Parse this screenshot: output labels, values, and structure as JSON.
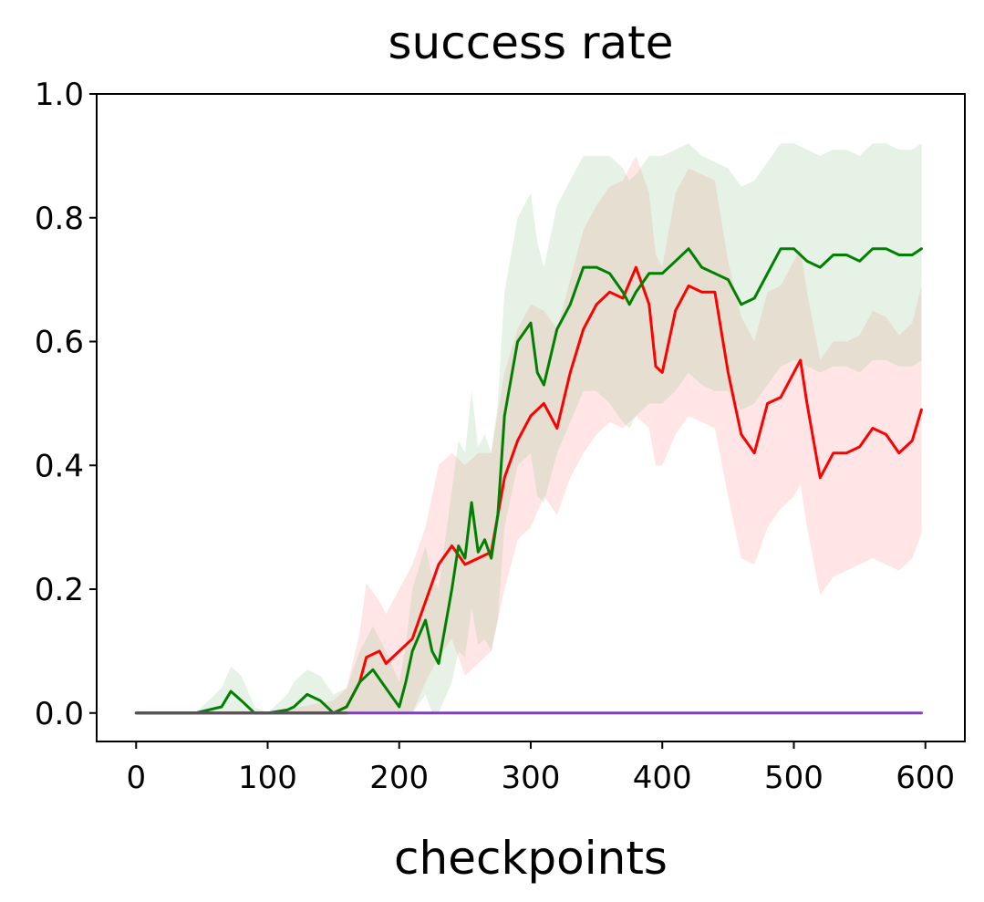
{
  "chart_data": {
    "type": "line",
    "title": "success rate",
    "xlabel": "checkpoints",
    "ylabel": "",
    "xlim": [
      -30,
      630
    ],
    "ylim": [
      -0.046,
      1.0
    ],
    "xticks": [
      0,
      100,
      200,
      300,
      400,
      500,
      600
    ],
    "yticks": [
      0.0,
      0.2,
      0.4,
      0.6,
      0.8,
      1.0
    ],
    "xtick_labels": [
      "0",
      "100",
      "200",
      "300",
      "400",
      "500",
      "600"
    ],
    "ytick_labels": [
      "0.0",
      "0.2",
      "0.4",
      "0.6",
      "0.8",
      "1.0"
    ],
    "grid": false,
    "legend": "none",
    "series": [
      {
        "color": "#ff0000",
        "band_color": "#ff9999",
        "x": [
          0,
          50,
          100,
          150,
          160,
          170,
          175,
          185,
          190,
          200,
          210,
          220,
          230,
          240,
          250,
          260,
          270,
          280,
          290,
          300,
          310,
          320,
          330,
          340,
          350,
          360,
          370,
          380,
          390,
          395,
          400,
          410,
          420,
          430,
          440,
          450,
          460,
          470,
          480,
          490,
          500,
          505,
          510,
          520,
          530,
          540,
          550,
          560,
          570,
          580,
          590,
          597
        ],
        "y": [
          0,
          0,
          0,
          0,
          0.01,
          0.05,
          0.09,
          0.1,
          0.08,
          0.1,
          0.12,
          0.18,
          0.24,
          0.27,
          0.24,
          0.25,
          0.26,
          0.38,
          0.44,
          0.48,
          0.5,
          0.46,
          0.55,
          0.62,
          0.66,
          0.68,
          0.67,
          0.72,
          0.66,
          0.56,
          0.55,
          0.65,
          0.69,
          0.68,
          0.68,
          0.55,
          0.45,
          0.42,
          0.5,
          0.51,
          0.55,
          0.57,
          0.5,
          0.38,
          0.42,
          0.42,
          0.43,
          0.46,
          0.45,
          0.42,
          0.44,
          0.49
        ],
        "lower": [
          0,
          0,
          0,
          0,
          0,
          0,
          0,
          0,
          0,
          0,
          0,
          0.05,
          0.09,
          0.12,
          0.06,
          0.08,
          0.1,
          0.2,
          0.28,
          0.3,
          0.35,
          0.32,
          0.38,
          0.42,
          0.45,
          0.47,
          0.46,
          0.48,
          0.46,
          0.4,
          0.4,
          0.45,
          0.48,
          0.47,
          0.46,
          0.35,
          0.25,
          0.24,
          0.3,
          0.33,
          0.35,
          0.37,
          0.3,
          0.19,
          0.22,
          0.23,
          0.24,
          0.25,
          0.24,
          0.23,
          0.25,
          0.29
        ],
        "upper": [
          0,
          0,
          0,
          0.02,
          0.04,
          0.13,
          0.21,
          0.18,
          0.16,
          0.2,
          0.24,
          0.3,
          0.4,
          0.42,
          0.4,
          0.42,
          0.42,
          0.55,
          0.62,
          0.66,
          0.65,
          0.62,
          0.7,
          0.78,
          0.82,
          0.85,
          0.86,
          0.9,
          0.84,
          0.74,
          0.72,
          0.84,
          0.88,
          0.87,
          0.86,
          0.73,
          0.64,
          0.6,
          0.68,
          0.69,
          0.73,
          0.75,
          0.68,
          0.57,
          0.6,
          0.6,
          0.61,
          0.65,
          0.64,
          0.61,
          0.63,
          0.69
        ]
      },
      {
        "color": "#008000",
        "band_color": "#99cc99",
        "x": [
          0,
          45,
          65,
          72,
          80,
          90,
          100,
          115,
          120,
          130,
          140,
          150,
          160,
          170,
          180,
          190,
          200,
          205,
          210,
          220,
          225,
          230,
          240,
          245,
          250,
          255,
          260,
          265,
          270,
          275,
          280,
          290,
          300,
          305,
          310,
          320,
          330,
          340,
          350,
          360,
          370,
          375,
          380,
          390,
          400,
          410,
          420,
          430,
          440,
          450,
          460,
          470,
          480,
          490,
          500,
          510,
          520,
          530,
          540,
          550,
          560,
          570,
          580,
          590,
          597
        ],
        "y": [
          0,
          0,
          0.01,
          0.035,
          0.02,
          0,
          0,
          0.005,
          0.01,
          0.03,
          0.02,
          0,
          0.01,
          0.05,
          0.07,
          0.04,
          0.01,
          0.05,
          0.1,
          0.15,
          0.1,
          0.08,
          0.2,
          0.27,
          0.25,
          0.34,
          0.26,
          0.28,
          0.25,
          0.32,
          0.48,
          0.6,
          0.63,
          0.55,
          0.53,
          0.62,
          0.66,
          0.72,
          0.72,
          0.71,
          0.68,
          0.66,
          0.68,
          0.71,
          0.71,
          0.73,
          0.75,
          0.72,
          0.71,
          0.7,
          0.66,
          0.67,
          0.71,
          0.75,
          0.75,
          0.73,
          0.72,
          0.74,
          0.74,
          0.73,
          0.75,
          0.75,
          0.74,
          0.74,
          0.75
        ],
        "lower": [
          0,
          0,
          0,
          0,
          0,
          0,
          0,
          0,
          0,
          0,
          0,
          0,
          0,
          0,
          0,
          0,
          0,
          0,
          0,
          0.03,
          0,
          0,
          0.05,
          0.1,
          0.09,
          0.17,
          0.11,
          0.12,
          0.1,
          0.15,
          0.3,
          0.4,
          0.42,
          0.35,
          0.34,
          0.42,
          0.47,
          0.52,
          0.52,
          0.5,
          0.47,
          0.46,
          0.48,
          0.5,
          0.5,
          0.52,
          0.55,
          0.53,
          0.52,
          0.52,
          0.49,
          0.5,
          0.53,
          0.56,
          0.57,
          0.56,
          0.55,
          0.56,
          0.56,
          0.55,
          0.57,
          0.57,
          0.56,
          0.56,
          0.57
        ],
        "upper": [
          0,
          0,
          0.04,
          0.075,
          0.06,
          0.01,
          0,
          0.03,
          0.05,
          0.07,
          0.06,
          0.03,
          0.04,
          0.1,
          0.14,
          0.1,
          0.05,
          0.11,
          0.2,
          0.27,
          0.22,
          0.2,
          0.36,
          0.44,
          0.42,
          0.52,
          0.43,
          0.45,
          0.42,
          0.5,
          0.68,
          0.8,
          0.84,
          0.76,
          0.72,
          0.82,
          0.86,
          0.9,
          0.9,
          0.9,
          0.88,
          0.86,
          0.87,
          0.9,
          0.9,
          0.91,
          0.92,
          0.9,
          0.89,
          0.88,
          0.85,
          0.86,
          0.89,
          0.92,
          0.92,
          0.91,
          0.9,
          0.91,
          0.91,
          0.9,
          0.92,
          0.92,
          0.91,
          0.91,
          0.92
        ]
      },
      {
        "color": "#7b42b5",
        "x": [
          0,
          597
        ],
        "y": [
          0,
          0
        ]
      },
      {
        "color": "#555555",
        "x": [
          0,
          160
        ],
        "y": [
          0,
          0
        ]
      }
    ]
  }
}
